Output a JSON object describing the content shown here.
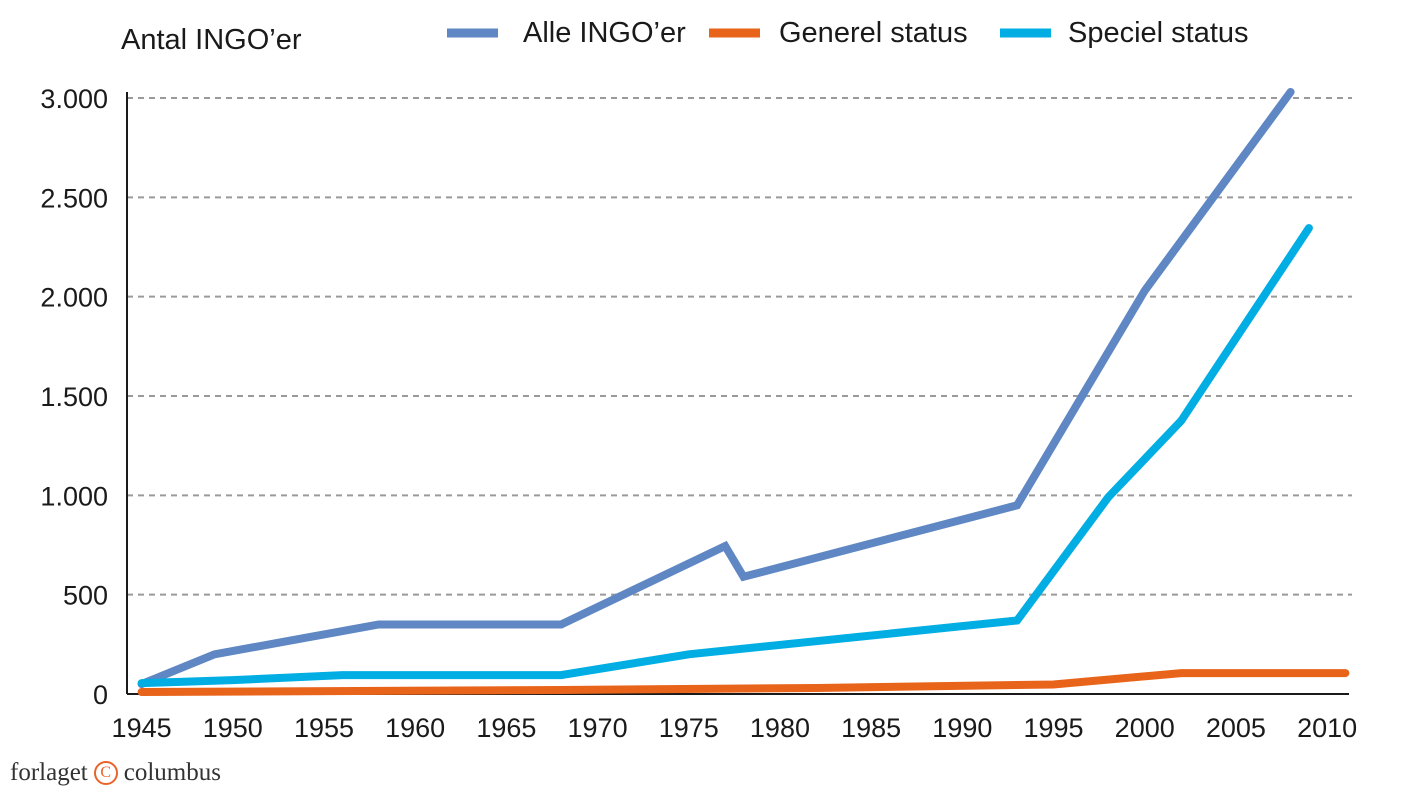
{
  "chart_data": {
    "type": "line",
    "title": "",
    "ylabel": "Antal INGO’er",
    "xlabel": "",
    "xlim": [
      1944.2,
      2011.2
    ],
    "ylim": [
      0,
      3000
    ],
    "x_ticks": [
      1945,
      1950,
      1955,
      1960,
      1965,
      1970,
      1975,
      1980,
      1985,
      1990,
      1995,
      2000,
      2005,
      2010
    ],
    "y_ticks": [
      0,
      500,
      1000,
      1500,
      2000,
      2500,
      3000
    ],
    "y_tick_labels": [
      "0",
      "500",
      "1.000",
      "1.500",
      "2.000",
      "2.500",
      "3.000"
    ],
    "grid": "horizontal dashed",
    "legend_position": "top",
    "series": [
      {
        "name": "Alle INGO’er",
        "color": "#5f87c3",
        "points": [
          [
            1945,
            50
          ],
          [
            1949,
            200
          ],
          [
            1958,
            350
          ],
          [
            1968,
            350
          ],
          [
            1977,
            745
          ],
          [
            1978,
            590
          ],
          [
            1993,
            950
          ],
          [
            2000,
            2030
          ],
          [
            2008,
            3030
          ]
        ]
      },
      {
        "name": "Generel status",
        "color": "#e8641a",
        "points": [
          [
            1945,
            10
          ],
          [
            1968,
            20
          ],
          [
            1982,
            30
          ],
          [
            1995,
            48
          ],
          [
            2002,
            105
          ],
          [
            2011,
            105
          ]
        ]
      },
      {
        "name": "Speciel status",
        "color": "#00aee3",
        "points": [
          [
            1945,
            55
          ],
          [
            1950,
            70
          ],
          [
            1956,
            95
          ],
          [
            1968,
            95
          ],
          [
            1975,
            200
          ],
          [
            1993,
            370
          ],
          [
            1998,
            990
          ],
          [
            2002,
            1375
          ],
          [
            2009,
            2345
          ]
        ]
      }
    ]
  },
  "publisher": {
    "name_left": "forlaget",
    "logo_glyph": "C",
    "name_right": "columbus"
  }
}
